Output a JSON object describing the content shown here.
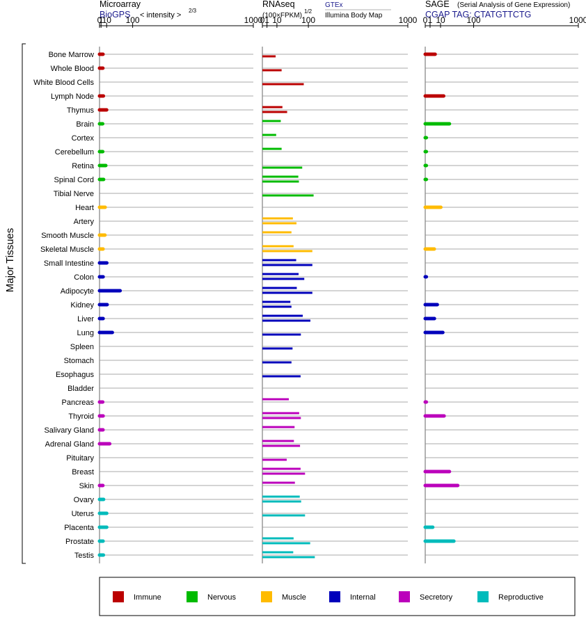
{
  "chart_data": {
    "type": "bar",
    "y_group_label": "Major Tissues",
    "tissues": [
      "Bone Marrow",
      "Whole Blood",
      "White Blood Cells",
      "Lymph Node",
      "Thymus",
      "Brain",
      "Cortex",
      "Cerebellum",
      "Retina",
      "Spinal Cord",
      "Tibial Nerve",
      "Heart",
      "Artery",
      "Smooth Muscle",
      "Skeletal Muscle",
      "Small Intestine",
      "Colon",
      "Adipocyte",
      "Kidney",
      "Liver",
      "Lung",
      "Spleen",
      "Stomach",
      "Esophagus",
      "Bladder",
      "Pancreas",
      "Thyroid",
      "Salivary Gland",
      "Adrenal Gland",
      "Pituitary",
      "Breast",
      "Skin",
      "Ovary",
      "Uterus",
      "Placenta",
      "Prostate",
      "Testis"
    ],
    "categories": [
      "Immune",
      "Immune",
      "Immune",
      "Immune",
      "Immune",
      "Nervous",
      "Nervous",
      "Nervous",
      "Nervous",
      "Nervous",
      "Nervous",
      "Muscle",
      "Muscle",
      "Muscle",
      "Muscle",
      "Internal",
      "Internal",
      "Internal",
      "Internal",
      "Internal",
      "Internal",
      "Internal",
      "Internal",
      "Internal",
      "Internal",
      "Secretory",
      "Secretory",
      "Secretory",
      "Secretory",
      "Secretory",
      "Secretory",
      "Secretory",
      "Reproductive",
      "Reproductive",
      "Reproductive",
      "Reproductive",
      "Reproductive"
    ],
    "colors": {
      "Immune": "#bb0000",
      "Nervous": "#00bb00",
      "Muscle": "#ffbb00",
      "Internal": "#0000bb",
      "Secretory": "#bb00bb",
      "Reproductive": "#00bbbb"
    },
    "panels": [
      {
        "title": "Microarray",
        "subtitle_link": "BioGPS",
        "subtitle_text": "< intensity >",
        "subtitle_exp": "2/3",
        "tick_labels": [
          "0",
          "1",
          "10",
          "100",
          "1000"
        ],
        "tick_values": [
          0,
          1,
          10,
          100,
          1000
        ],
        "power": 0.6667,
        "bars_per_row": 1,
        "values": [
          [
            3.4
          ],
          [
            3.2
          ],
          [
            null
          ],
          [
            4.0
          ],
          [
            10.0
          ],
          [
            2.9
          ],
          [
            null
          ],
          [
            3.0
          ],
          [
            8.2
          ],
          [
            4.3
          ],
          [
            null
          ],
          [
            7.0
          ],
          [
            null
          ],
          [
            6.6
          ],
          [
            3.5
          ],
          [
            10.3
          ],
          [
            3.6
          ],
          [
            49
          ],
          [
            11
          ],
          [
            3.6
          ],
          [
            24
          ],
          [
            null
          ],
          [
            null
          ],
          [
            null
          ],
          [
            null
          ],
          [
            3.0
          ],
          [
            3.6
          ],
          [
            3.4
          ],
          [
            17
          ],
          [
            null
          ],
          [
            null
          ],
          [
            3.2
          ],
          [
            4.3
          ],
          [
            10.1
          ],
          [
            10.1
          ],
          [
            3.5
          ],
          [
            4.0
          ]
        ]
      },
      {
        "title": "RNAseq",
        "title_note": "(100×FPKM)",
        "title_exp": "1/2",
        "source_top": "GTEx",
        "source_bottom": "Illumina Body Map",
        "tick_labels": [
          "0",
          "1",
          "10",
          "100",
          "1000"
        ],
        "tick_values": [
          0,
          1,
          10,
          100,
          1000
        ],
        "power": 0.5,
        "bars_per_row": 2,
        "values": [
          [
            null,
            8.3
          ],
          [
            null,
            17.5
          ],
          [
            null,
            81
          ],
          [
            null,
            null
          ],
          [
            19,
            29
          ],
          [
            16,
            null
          ],
          [
            9,
            null
          ],
          [
            17.5,
            null
          ],
          [
            null,
            75
          ],
          [
            61,
            63
          ],
          [
            null,
            124
          ],
          [
            null,
            null
          ],
          [
            44,
            55
          ],
          [
            40,
            null
          ],
          [
            46,
            118
          ],
          [
            54,
            118
          ],
          [
            62,
            83
          ],
          [
            56,
            118
          ],
          [
            37,
            40
          ],
          [
            77,
            109
          ],
          [
            null,
            70
          ],
          [
            null,
            43
          ],
          [
            null,
            40
          ],
          [
            null,
            69
          ],
          [
            null,
            null
          ],
          [
            33,
            null
          ],
          [
            64,
            70
          ],
          [
            49,
            null
          ],
          [
            47,
            67
          ],
          [
            null,
            28
          ],
          [
            69,
            86
          ],
          [
            50,
            null
          ],
          [
            66,
            71
          ],
          [
            null,
            86
          ],
          [
            null,
            null
          ],
          [
            46,
            108
          ],
          [
            45,
            130
          ]
        ]
      },
      {
        "title": "SAGE",
        "title_note": "(Serial Analysis of Gene Expression)",
        "subtitle_link": "CGAP TAG: CTATGTTCTG",
        "tick_labels": [
          "0",
          "1",
          "10",
          "100",
          "1000"
        ],
        "tick_values": [
          0,
          1,
          10,
          100,
          1000
        ],
        "power": 0.5,
        "bars_per_row": 1,
        "values": [
          [
            4.2
          ],
          [
            null
          ],
          [
            null
          ],
          [
            14.5
          ],
          [
            null
          ],
          [
            25
          ],
          [
            0.05
          ],
          [
            0.05
          ],
          [
            0.05
          ],
          [
            0.05
          ],
          [
            null
          ],
          [
            10.4
          ],
          [
            null
          ],
          [
            null
          ],
          [
            3.5
          ],
          [
            null
          ],
          [
            0.05
          ],
          [
            null
          ],
          [
            6.2
          ],
          [
            3.6
          ],
          [
            13.2
          ],
          [
            null
          ],
          [
            null
          ],
          [
            null
          ],
          [
            null
          ],
          [
            0.05
          ],
          [
            15.2
          ],
          [
            null
          ],
          [
            null
          ],
          [
            null
          ],
          [
            25
          ],
          [
            45
          ],
          [
            null
          ],
          [
            null
          ],
          [
            2.4
          ],
          [
            35
          ],
          [
            null
          ]
        ]
      }
    ]
  },
  "legend": {
    "items": [
      {
        "label": "Immune",
        "color": "#bb0000"
      },
      {
        "label": "Nervous",
        "color": "#00bb00"
      },
      {
        "label": "Muscle",
        "color": "#ffbb00"
      },
      {
        "label": "Internal",
        "color": "#0000bb"
      },
      {
        "label": "Secretory",
        "color": "#bb00bb"
      },
      {
        "label": "Reproductive",
        "color": "#00bbbb"
      }
    ]
  }
}
